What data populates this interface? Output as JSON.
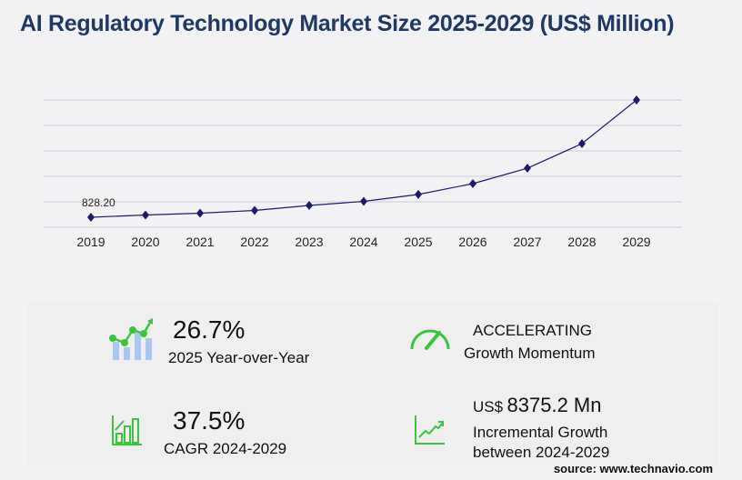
{
  "title": "AI Regulatory Technology Market Size 2025-2029 (US$ Million)",
  "chart_data": {
    "type": "line",
    "title": "AI Regulatory Technology Market Size 2025-2029 (US$ Million)",
    "categories": [
      "2019",
      "2020",
      "2021",
      "2022",
      "2023",
      "2024",
      "2025",
      "2026",
      "2027",
      "2028",
      "2029"
    ],
    "values": [
      828.2,
      1014,
      1164,
      1389,
      1802,
      2142,
      2714,
      3605,
      4880,
      6910,
      10517
    ],
    "data_labels": {
      "2019": "828.20"
    },
    "ylim": [
      0,
      10517
    ],
    "grid": true,
    "line_color": "#1a1a6e"
  },
  "stats": {
    "yoy_value": "26.7%",
    "yoy_label": "2025 Year-over-Year",
    "momentum_value": "ACCELERATING",
    "momentum_label": "Growth Momentum",
    "cagr_value": "37.5%",
    "cagr_label": "CAGR 2024-2029",
    "incr_prefix": "US$",
    "incr_value": "8375.2 Mn",
    "incr_label1": "Incremental Growth",
    "incr_label2": "between 2024-2029"
  },
  "source": "source: www.technavio.com",
  "colors": {
    "accent_green": "#3cc43c",
    "bar_blue": "#a8c8f0",
    "title": "#1f3864"
  }
}
